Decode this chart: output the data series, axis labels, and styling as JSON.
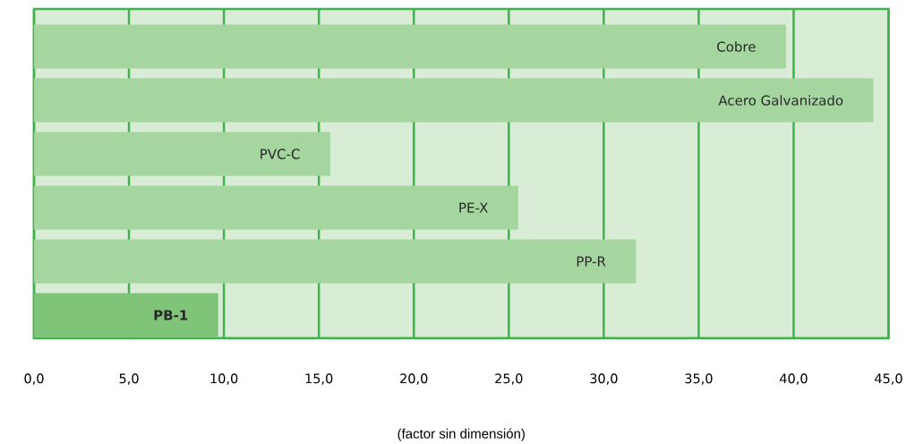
{
  "chart_data": {
    "type": "bar",
    "orientation": "horizontal",
    "xlabel": "(factor sin dimensión)",
    "categories": [
      "Cobre",
      "Acero Galvanizado",
      "PVC-C",
      "PE-X",
      "PP-R",
      "**PB-1**"
    ],
    "values": [
      39.6,
      44.2,
      15.6,
      25.5,
      31.7,
      9.7
    ],
    "colors": [
      "#a5d6a0",
      "#a5d6a0",
      "#a5d6a0",
      "#a5d6a0",
      "#a5d6a0",
      "#80c47a"
    ],
    "xlim": [
      0,
      45
    ],
    "xticks": [
      {
        "value": 0,
        "label": "0,0"
      },
      {
        "value": 5,
        "label": "5,0"
      },
      {
        "value": 10,
        "label": "10,0"
      },
      {
        "value": 15,
        "label": "15,0"
      },
      {
        "value": 20,
        "label": "20,0"
      },
      {
        "value": 25,
        "label": "25,0"
      },
      {
        "value": 30,
        "label": "30,0"
      },
      {
        "value": 35,
        "label": "35,0"
      },
      {
        "value": 40,
        "label": "40,0"
      },
      {
        "value": 45,
        "label": "45,0"
      }
    ],
    "grid": "x",
    "tick_labels": "x"
  }
}
